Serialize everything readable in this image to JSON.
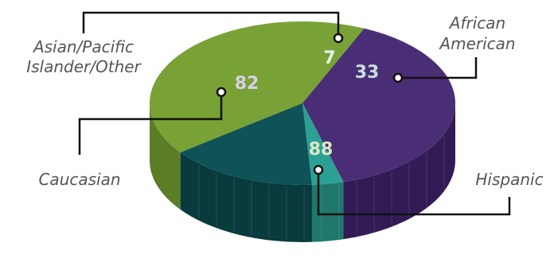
{
  "chart_data": {
    "type": "pie",
    "style": "3d",
    "slices": [
      {
        "label": "Hispanic",
        "value": 88,
        "color": "#78a235",
        "side_color": "#5b7d26",
        "label_color": "#dde8c4"
      },
      {
        "label": "Caucasian",
        "value": 82,
        "color": "#4a2e75",
        "side_color": "#321b55",
        "label_color": "#d8d0e6"
      },
      {
        "label": "Asian/Pacific Islander/Other",
        "value": 7,
        "color": "#2ba195",
        "side_color": "#1f776d",
        "label_color": "#e6f3f1"
      },
      {
        "label": "African American",
        "value": 33,
        "color": "#0f5257",
        "side_color": "#093a3e",
        "label_color": "#c9dfe0"
      }
    ],
    "category_labels": {
      "hispanic": "Hispanic",
      "caucasian": "Caucasian",
      "asian_line1": "Asian/Pacific",
      "asian_line2": "Islander/Other",
      "african_line1": "African",
      "african_line2": "American"
    },
    "value_labels": {
      "hispanic": "88",
      "caucasian": "82",
      "asian": "7",
      "african": "33"
    }
  }
}
